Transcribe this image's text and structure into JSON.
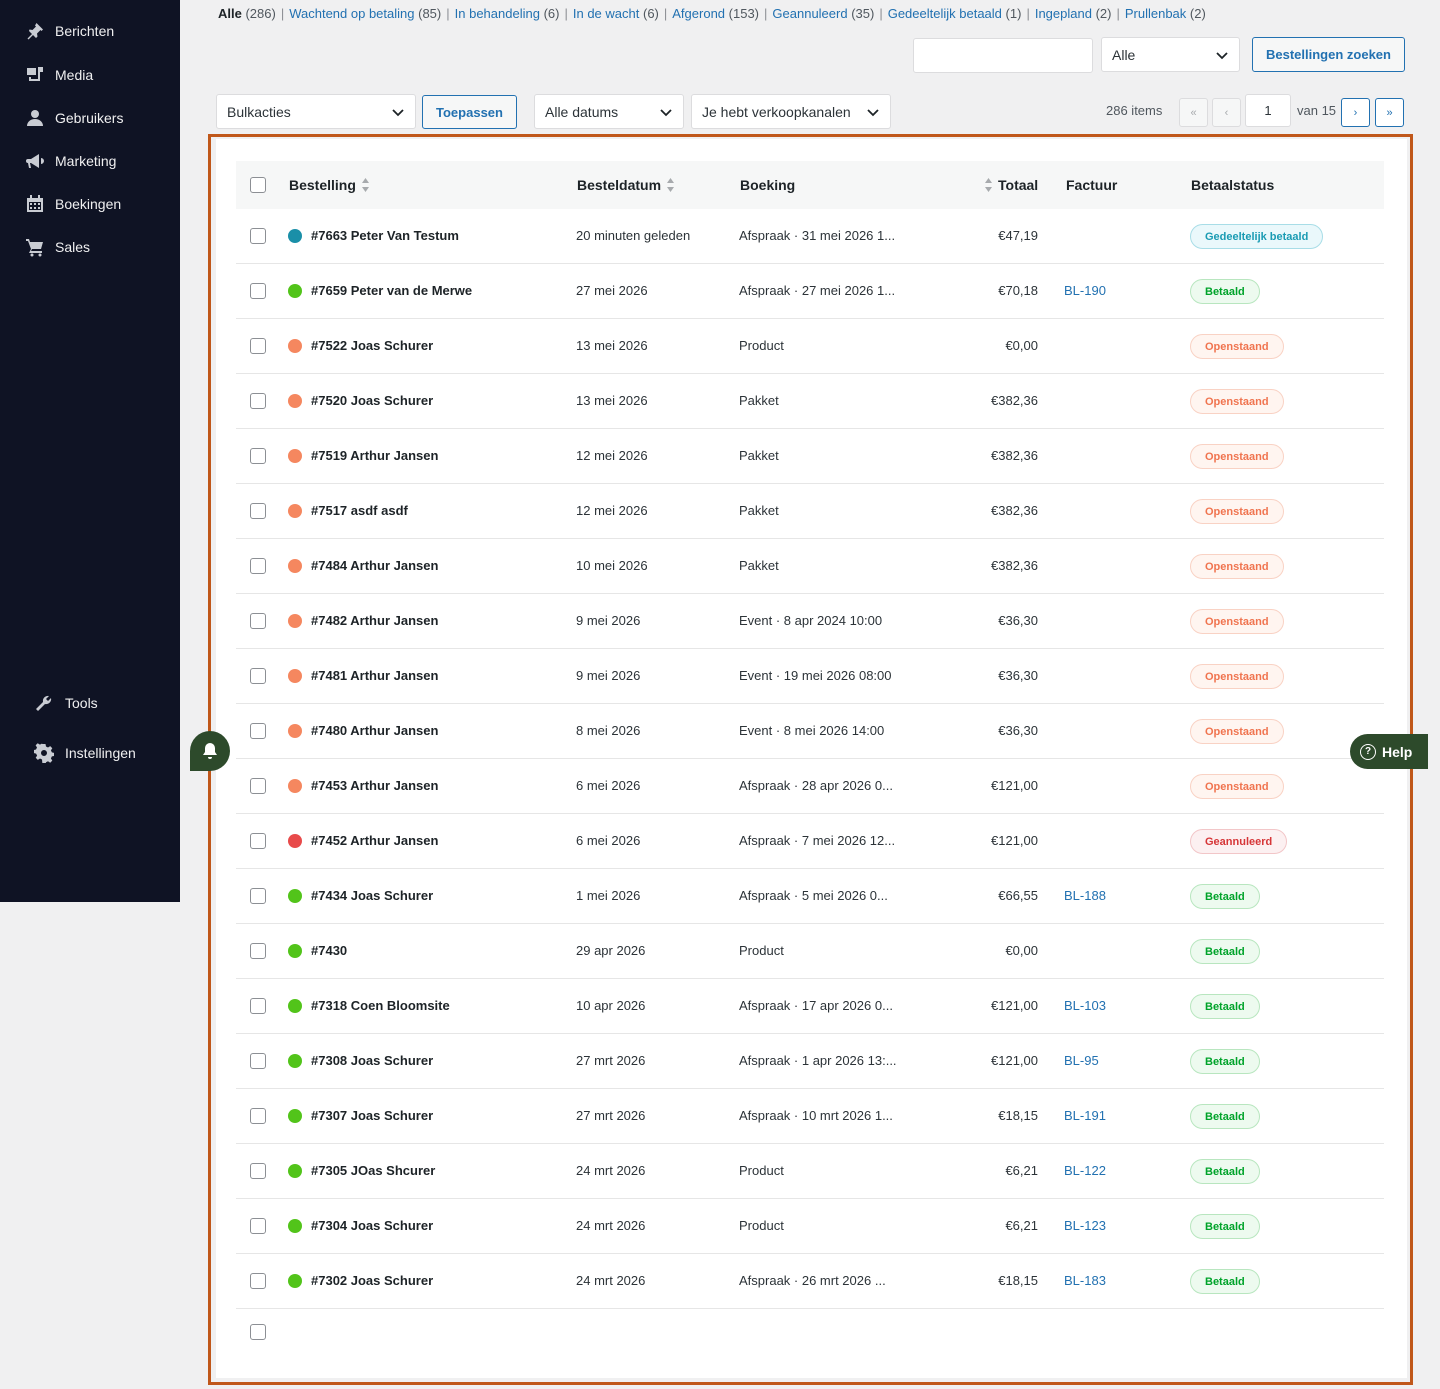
{
  "sidebar": {
    "items": [
      {
        "label": "Berichten",
        "icon": "pin-icon"
      },
      {
        "label": "Media",
        "icon": "media-icon"
      },
      {
        "label": "Gebruikers",
        "icon": "user-icon"
      },
      {
        "label": "Marketing",
        "icon": "megaphone-icon"
      },
      {
        "label": "Boekingen",
        "icon": "calendar-icon"
      },
      {
        "label": "Sales",
        "icon": "cart-icon"
      }
    ],
    "lower_items": [
      {
        "label": "Tools",
        "icon": "wrench-icon"
      },
      {
        "label": "Instellingen",
        "icon": "gear-icon"
      }
    ]
  },
  "status_links": [
    {
      "label": "Alle",
      "count": "(286)",
      "current": true
    },
    {
      "label": "Wachtend op betaling",
      "count": "(85)"
    },
    {
      "label": "In behandeling",
      "count": "(6)"
    },
    {
      "label": "In de wacht",
      "count": "(6)"
    },
    {
      "label": "Afgerond",
      "count": "(153)"
    },
    {
      "label": "Geannuleerd",
      "count": "(35)"
    },
    {
      "label": "Gedeeltelijk betaald",
      "count": "(1)"
    },
    {
      "label": "Ingepland",
      "count": "(2)"
    },
    {
      "label": "Prullenbak",
      "count": "(2)"
    }
  ],
  "search": {
    "input_value": "",
    "filter_select": "Alle",
    "button_label": "Bestellingen zoeken"
  },
  "filters": {
    "bulk_actions": "Bulkacties",
    "apply_label": "Toepassen",
    "dates": "Alle datums",
    "channels": "Je hebt verkoopkanalen"
  },
  "pagination": {
    "items": "286 items",
    "first": "«",
    "prev": "‹",
    "current_page": "1",
    "of_pages": "van 15",
    "next": "›",
    "last": "»"
  },
  "table": {
    "headers": {
      "order": "Bestelling",
      "date": "Besteldatum",
      "booking": "Boeking",
      "total": "Totaal",
      "invoice": "Factuur",
      "status": "Betaalstatus"
    },
    "rows": [
      {
        "order": "#7663 Peter Van Testum",
        "date": "20 minuten geleden",
        "booking": "Afspraak · 31 mei 2026 1...",
        "total": "€47,19",
        "invoice": "",
        "status": "Gedeeltelijk betaald",
        "status_type": "partial",
        "dot": "#1a8fa8"
      },
      {
        "order": "#7659 Peter van de Merwe",
        "date": "27 mei 2026",
        "booking": "Afspraak · 27 mei 2026 1...",
        "total": "€70,18",
        "invoice": "BL-190",
        "status": "Betaald",
        "status_type": "paid",
        "dot": "#52c41a"
      },
      {
        "order": "#7522 Joas Schurer",
        "date": "13 mei 2026",
        "booking": "Product",
        "total": "€0,00",
        "invoice": "",
        "status": "Openstaand",
        "status_type": "open",
        "dot": "#f5875f"
      },
      {
        "order": "#7520 Joas Schurer",
        "date": "13 mei 2026",
        "booking": "Pakket",
        "total": "€382,36",
        "invoice": "",
        "status": "Openstaand",
        "status_type": "open",
        "dot": "#f5875f"
      },
      {
        "order": "#7519 Arthur Jansen",
        "date": "12 mei 2026",
        "booking": "Pakket",
        "total": "€382,36",
        "invoice": "",
        "status": "Openstaand",
        "status_type": "open",
        "dot": "#f5875f"
      },
      {
        "order": "#7517 asdf asdf",
        "date": "12 mei 2026",
        "booking": "Pakket",
        "total": "€382,36",
        "invoice": "",
        "status": "Openstaand",
        "status_type": "open",
        "dot": "#f5875f"
      },
      {
        "order": "#7484 Arthur Jansen",
        "date": "10 mei 2026",
        "booking": "Pakket",
        "total": "€382,36",
        "invoice": "",
        "status": "Openstaand",
        "status_type": "open",
        "dot": "#f5875f"
      },
      {
        "order": "#7482 Arthur Jansen",
        "date": "9 mei 2026",
        "booking": "Event · 8 apr 2024 10:00",
        "total": "€36,30",
        "invoice": "",
        "status": "Openstaand",
        "status_type": "open",
        "dot": "#f5875f"
      },
      {
        "order": "#7481 Arthur Jansen",
        "date": "9 mei 2026",
        "booking": "Event · 19 mei 2026 08:00",
        "total": "€36,30",
        "invoice": "",
        "status": "Openstaand",
        "status_type": "open",
        "dot": "#f5875f"
      },
      {
        "order": "#7480 Arthur Jansen",
        "date": "8 mei 2026",
        "booking": "Event · 8 mei 2026 14:00",
        "total": "€36,30",
        "invoice": "",
        "status": "Openstaand",
        "status_type": "open",
        "dot": "#f5875f"
      },
      {
        "order": "#7453 Arthur Jansen",
        "date": "6 mei 2026",
        "booking": "Afspraak · 28 apr 2026 0...",
        "total": "€121,00",
        "invoice": "",
        "status": "Openstaand",
        "status_type": "open",
        "dot": "#f5875f"
      },
      {
        "order": "#7452 Arthur Jansen",
        "date": "6 mei 2026",
        "booking": "Afspraak · 7 mei 2026 12...",
        "total": "€121,00",
        "invoice": "",
        "status": "Geannuleerd",
        "status_type": "cancel",
        "dot": "#e84a4a"
      },
      {
        "order": "#7434 Joas Schurer",
        "date": "1 mei 2026",
        "booking": "Afspraak · 5 mei 2026 0...",
        "total": "€66,55",
        "invoice": "BL-188",
        "status": "Betaald",
        "status_type": "paid",
        "dot": "#52c41a"
      },
      {
        "order": "#7430",
        "date": "29 apr 2026",
        "booking": "Product",
        "total": "€0,00",
        "invoice": "",
        "status": "Betaald",
        "status_type": "paid",
        "dot": "#52c41a"
      },
      {
        "order": "#7318 Coen Bloomsite",
        "date": "10 apr 2026",
        "booking": "Afspraak · 17 apr 2026 0...",
        "total": "€121,00",
        "invoice": "BL-103",
        "status": "Betaald",
        "status_type": "paid",
        "dot": "#52c41a"
      },
      {
        "order": "#7308 Joas Schurer",
        "date": "27 mrt 2026",
        "booking": "Afspraak · 1 apr 2026 13:...",
        "total": "€121,00",
        "invoice": "BL-95",
        "status": "Betaald",
        "status_type": "paid",
        "dot": "#52c41a"
      },
      {
        "order": "#7307 Joas Schurer",
        "date": "27 mrt 2026",
        "booking": "Afspraak · 10 mrt 2026 1...",
        "total": "€18,15",
        "invoice": "BL-191",
        "status": "Betaald",
        "status_type": "paid",
        "dot": "#52c41a"
      },
      {
        "order": "#7305 JOas Shcurer",
        "date": "24 mrt 2026",
        "booking": "Product",
        "total": "€6,21",
        "invoice": "BL-122",
        "status": "Betaald",
        "status_type": "paid",
        "dot": "#52c41a"
      },
      {
        "order": "#7304 Joas Schurer",
        "date": "24 mrt 2026",
        "booking": "Product",
        "total": "€6,21",
        "invoice": "BL-123",
        "status": "Betaald",
        "status_type": "paid",
        "dot": "#52c41a"
      },
      {
        "order": "#7302 Joas Schurer",
        "date": "24 mrt 2026",
        "booking": "Afspraak · 26 mrt 2026 ...",
        "total": "€18,15",
        "invoice": "BL-183",
        "status": "Betaald",
        "status_type": "paid",
        "dot": "#52c41a"
      }
    ]
  },
  "help": {
    "label": "Help"
  }
}
